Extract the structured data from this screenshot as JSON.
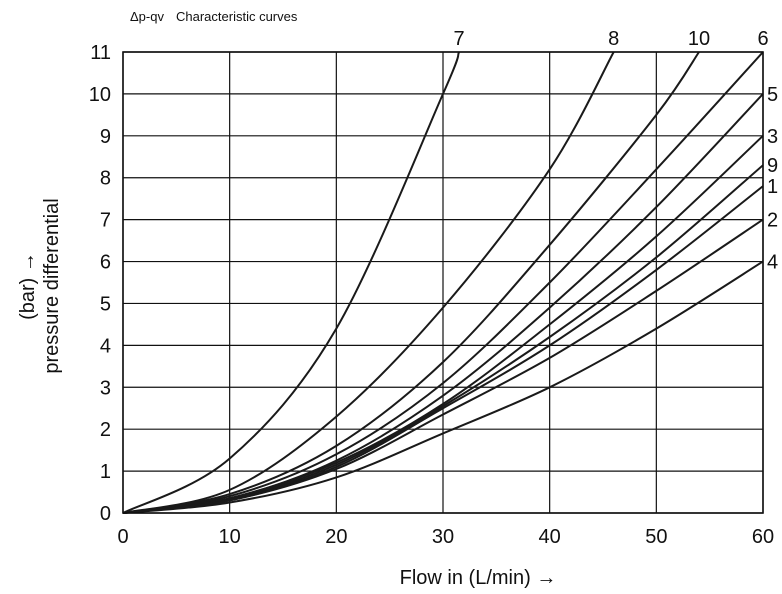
{
  "chart_data": {
    "type": "line",
    "title_symbol": "Δp-qv",
    "title": "Characteristic curves",
    "xlabel": "Flow in (L/min) →",
    "ylabel_unit": "(bar) →",
    "ylabel": "pressure differential",
    "xlim": [
      0,
      60
    ],
    "ylim": [
      0,
      11
    ],
    "x_ticks": [
      0,
      10,
      20,
      30,
      40,
      50,
      60
    ],
    "y_ticks": [
      0,
      1,
      2,
      3,
      4,
      5,
      6,
      7,
      8,
      9,
      10,
      11
    ],
    "grid": true,
    "series": [
      {
        "name": "7",
        "x": [
          0,
          10,
          20,
          30,
          31.5
        ],
        "y": [
          0,
          1.3,
          4.4,
          10,
          11
        ]
      },
      {
        "name": "8",
        "x": [
          0,
          10,
          20,
          30,
          40,
          46
        ],
        "y": [
          0,
          0.55,
          2.3,
          4.9,
          8.2,
          11
        ]
      },
      {
        "name": "10",
        "x": [
          0,
          10,
          20,
          30,
          40,
          50,
          54
        ],
        "y": [
          0,
          0.45,
          1.6,
          3.6,
          6.4,
          9.5,
          11
        ]
      },
      {
        "name": "6",
        "x": [
          0,
          10,
          20,
          30,
          40,
          50,
          60
        ],
        "y": [
          0,
          0.4,
          1.4,
          3.1,
          5.5,
          8.2,
          11
        ]
      },
      {
        "name": "5",
        "x": [
          0,
          10,
          20,
          30,
          40,
          50,
          60
        ],
        "y": [
          0,
          0.35,
          1.25,
          2.8,
          4.9,
          7.3,
          10
        ]
      },
      {
        "name": "3",
        "x": [
          0,
          10,
          20,
          30,
          40,
          50,
          60
        ],
        "y": [
          0,
          0.35,
          1.2,
          2.6,
          4.5,
          6.6,
          9
        ]
      },
      {
        "name": "9",
        "x": [
          0,
          10,
          20,
          30,
          40,
          50,
          60
        ],
        "y": [
          0,
          0.32,
          1.15,
          2.55,
          4.2,
          6.1,
          8.3
        ]
      },
      {
        "name": "1",
        "x": [
          0,
          10,
          20,
          30,
          40,
          50,
          60
        ],
        "y": [
          0,
          0.3,
          1.1,
          2.5,
          4.0,
          5.8,
          7.8
        ]
      },
      {
        "name": "2",
        "x": [
          0,
          10,
          20,
          30,
          40,
          50,
          60
        ],
        "y": [
          0,
          0.3,
          1.05,
          2.35,
          3.7,
          5.3,
          7
        ]
      },
      {
        "name": "4",
        "x": [
          0,
          10,
          20,
          30,
          40,
          50,
          60
        ],
        "y": [
          0,
          0.25,
          0.85,
          1.9,
          3.0,
          4.4,
          6
        ]
      }
    ]
  }
}
